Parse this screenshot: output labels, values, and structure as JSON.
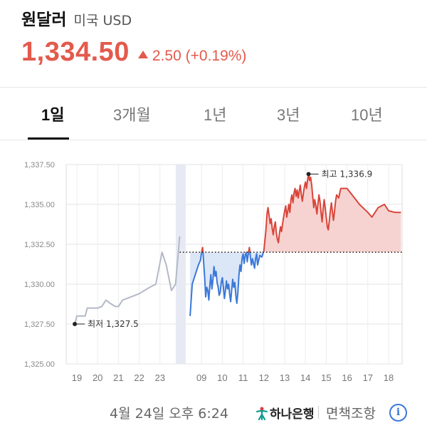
{
  "header": {
    "title": "원달러",
    "subtitle": "미국 USD",
    "price": "1,334.50",
    "change": "2.50 (+0.19%)",
    "trend_icon": "triangle-up-icon",
    "trend_color": "#e35a4c"
  },
  "tabs": [
    {
      "label": "1일",
      "active": true
    },
    {
      "label": "3개월",
      "active": false
    },
    {
      "label": "1년",
      "active": false
    },
    {
      "label": "3년",
      "active": false
    },
    {
      "label": "10년",
      "active": false
    }
  ],
  "chart_data": {
    "type": "line",
    "ylim": [
      1325.0,
      1337.5
    ],
    "y_ticks": [
      "1,337.50",
      "1,335.00",
      "1,332.50",
      "1,330.00",
      "1,327.50",
      "1,325.00"
    ],
    "x_ticks": [
      "19",
      "20",
      "21",
      "22",
      "23",
      "moon-icon",
      "09",
      "10",
      "11",
      "12",
      "13",
      "14",
      "15",
      "16",
      "17",
      "18"
    ],
    "baseline": 1332.0,
    "colors": {
      "prior_day": "#b4b9c6",
      "below_baseline": "#3b78d8",
      "above_baseline": "#d9453a",
      "night_band": "#e7e9f3"
    },
    "prior_day_series": [
      [
        -0.1,
        1327.5
      ],
      [
        0.0,
        1328.0
      ],
      [
        0.4,
        1328.0
      ],
      [
        0.5,
        1328.5
      ],
      [
        1.0,
        1328.5
      ],
      [
        1.2,
        1328.6
      ],
      [
        1.4,
        1329.0
      ],
      [
        1.6,
        1328.8
      ],
      [
        1.85,
        1328.6
      ],
      [
        2.0,
        1328.6
      ],
      [
        2.2,
        1329.0
      ],
      [
        2.6,
        1329.2
      ],
      [
        3.0,
        1329.4
      ],
      [
        3.5,
        1329.8
      ],
      [
        3.8,
        1330.0
      ],
      [
        4.1,
        1332.0
      ],
      [
        4.3,
        1331.2
      ],
      [
        4.55,
        1329.6
      ],
      [
        4.75,
        1330.0
      ],
      [
        4.95,
        1333.0
      ]
    ],
    "day_series": [
      [
        5.45,
        1328.0
      ],
      [
        5.55,
        1330.0
      ],
      [
        5.85,
        1331.2
      ],
      [
        5.95,
        1331.5
      ],
      [
        6.0,
        1332.0
      ],
      [
        6.05,
        1332.3
      ],
      [
        6.1,
        1331.4
      ],
      [
        6.15,
        1330.4
      ],
      [
        6.2,
        1329.2
      ],
      [
        6.25,
        1329.8
      ],
      [
        6.3,
        1329.6
      ],
      [
        6.35,
        1329.0
      ],
      [
        6.4,
        1329.9
      ],
      [
        6.45,
        1330.6
      ],
      [
        6.5,
        1329.7
      ],
      [
        6.55,
        1330.3
      ],
      [
        6.6,
        1331.1
      ],
      [
        6.65,
        1330.5
      ],
      [
        6.7,
        1330.8
      ],
      [
        6.75,
        1330.1
      ],
      [
        6.8,
        1329.8
      ],
      [
        6.85,
        1329.3
      ],
      [
        6.9,
        1329.5
      ],
      [
        6.95,
        1330.1
      ],
      [
        7.0,
        1330.4
      ],
      [
        7.05,
        1329.8
      ],
      [
        7.1,
        1329.1
      ],
      [
        7.15,
        1329.6
      ],
      [
        7.2,
        1330.2
      ],
      [
        7.25,
        1329.7
      ],
      [
        7.3,
        1330.0
      ],
      [
        7.35,
        1329.4
      ],
      [
        7.4,
        1328.9
      ],
      [
        7.45,
        1329.6
      ],
      [
        7.5,
        1330.3
      ],
      [
        7.55,
        1329.8
      ],
      [
        7.6,
        1330.1
      ],
      [
        7.65,
        1329.3
      ],
      [
        7.7,
        1328.8
      ],
      [
        7.75,
        1329.5
      ],
      [
        7.8,
        1330.6
      ],
      [
        7.85,
        1331.2
      ],
      [
        7.9,
        1330.8
      ],
      [
        7.95,
        1331.6
      ],
      [
        8.0,
        1331.9
      ],
      [
        8.05,
        1331.3
      ],
      [
        8.1,
        1331.8
      ],
      [
        8.15,
        1332.0
      ],
      [
        8.2,
        1331.4
      ],
      [
        8.25,
        1331.9
      ],
      [
        8.3,
        1332.3
      ],
      [
        8.35,
        1331.7
      ],
      [
        8.4,
        1331.2
      ],
      [
        8.45,
        1331.6
      ],
      [
        8.5,
        1331.3
      ],
      [
        8.55,
        1331.0
      ],
      [
        8.6,
        1331.6
      ],
      [
        8.65,
        1331.9
      ],
      [
        8.7,
        1331.2
      ],
      [
        8.75,
        1331.5
      ],
      [
        8.8,
        1331.8
      ],
      [
        8.9,
        1331.7
      ],
      [
        9.0,
        1332.1
      ],
      [
        9.1,
        1333.4
      ],
      [
        9.15,
        1334.4
      ],
      [
        9.2,
        1334.8
      ],
      [
        9.25,
        1334.3
      ],
      [
        9.3,
        1333.8
      ],
      [
        9.35,
        1334.1
      ],
      [
        9.4,
        1333.5
      ],
      [
        9.45,
        1333.1
      ],
      [
        9.5,
        1333.6
      ],
      [
        9.55,
        1333.9
      ],
      [
        9.6,
        1333.2
      ],
      [
        9.65,
        1332.8
      ],
      [
        9.7,
        1332.6
      ],
      [
        9.75,
        1333.2
      ],
      [
        9.8,
        1333.6
      ],
      [
        9.85,
        1333.3
      ],
      [
        9.9,
        1333.8
      ],
      [
        9.95,
        1334.2
      ],
      [
        10.0,
        1334.6
      ],
      [
        10.05,
        1334.9
      ],
      [
        10.1,
        1334.2
      ],
      [
        10.15,
        1334.6
      ],
      [
        10.2,
        1335.0
      ],
      [
        10.25,
        1334.5
      ],
      [
        10.3,
        1335.3
      ],
      [
        10.35,
        1335.6
      ],
      [
        10.4,
        1335.1
      ],
      [
        10.45,
        1335.7
      ],
      [
        10.5,
        1336.0
      ],
      [
        10.55,
        1335.5
      ],
      [
        10.6,
        1335.9
      ],
      [
        10.65,
        1335.4
      ],
      [
        10.7,
        1335.8
      ],
      [
        10.75,
        1336.2
      ],
      [
        10.8,
        1335.6
      ],
      [
        10.85,
        1335.2
      ],
      [
        10.9,
        1335.7
      ],
      [
        10.95,
        1336.1
      ],
      [
        11.0,
        1336.4
      ],
      [
        11.05,
        1336.0
      ],
      [
        11.1,
        1336.5
      ],
      [
        11.15,
        1336.9
      ],
      [
        11.2,
        1336.5
      ],
      [
        11.25,
        1336.7
      ],
      [
        11.3,
        1336.2
      ],
      [
        11.35,
        1335.5
      ],
      [
        11.4,
        1334.8
      ],
      [
        11.45,
        1335.3
      ],
      [
        11.5,
        1334.9
      ],
      [
        11.55,
        1334.4
      ],
      [
        11.6,
        1335.0
      ],
      [
        11.65,
        1335.6
      ],
      [
        11.7,
        1335.2
      ],
      [
        11.75,
        1334.5
      ],
      [
        11.8,
        1333.9
      ],
      [
        11.85,
        1334.7
      ],
      [
        11.9,
        1335.3
      ],
      [
        11.95,
        1334.8
      ],
      [
        12.0,
        1334.2
      ],
      [
        12.05,
        1333.6
      ],
      [
        12.1,
        1333.4
      ],
      [
        12.15,
        1334.0
      ],
      [
        12.2,
        1334.6
      ],
      [
        12.25,
        1335.1
      ],
      [
        12.3,
        1334.5
      ],
      [
        12.35,
        1334.0
      ],
      [
        12.4,
        1334.6
      ],
      [
        12.45,
        1335.2
      ],
      [
        12.5,
        1335.6
      ],
      [
        12.6,
        1335.4
      ],
      [
        12.7,
        1336.0
      ],
      [
        12.8,
        1336.0
      ],
      [
        13.0,
        1336.0
      ],
      [
        13.3,
        1335.5
      ],
      [
        13.6,
        1335.0
      ],
      [
        14.0,
        1334.5
      ],
      [
        14.2,
        1334.2
      ],
      [
        14.5,
        1334.8
      ],
      [
        14.8,
        1335.0
      ],
      [
        15.0,
        1334.6
      ],
      [
        15.3,
        1334.5
      ],
      [
        15.6,
        1334.5
      ]
    ],
    "annotations": [
      {
        "label": "최고 1,336.9",
        "x": 11.15,
        "y": 1336.9
      },
      {
        "label": "최저 1,327.5",
        "x": -0.1,
        "y": 1327.5
      }
    ]
  },
  "footer": {
    "timestamp": "4월 24일 오후 6:24",
    "bank_logo": "hana-logo-icon",
    "bank_color": "#0f9a8e",
    "bank_name": "하나은행",
    "disclaimer": "면책조항",
    "info_icon": "info-icon"
  }
}
